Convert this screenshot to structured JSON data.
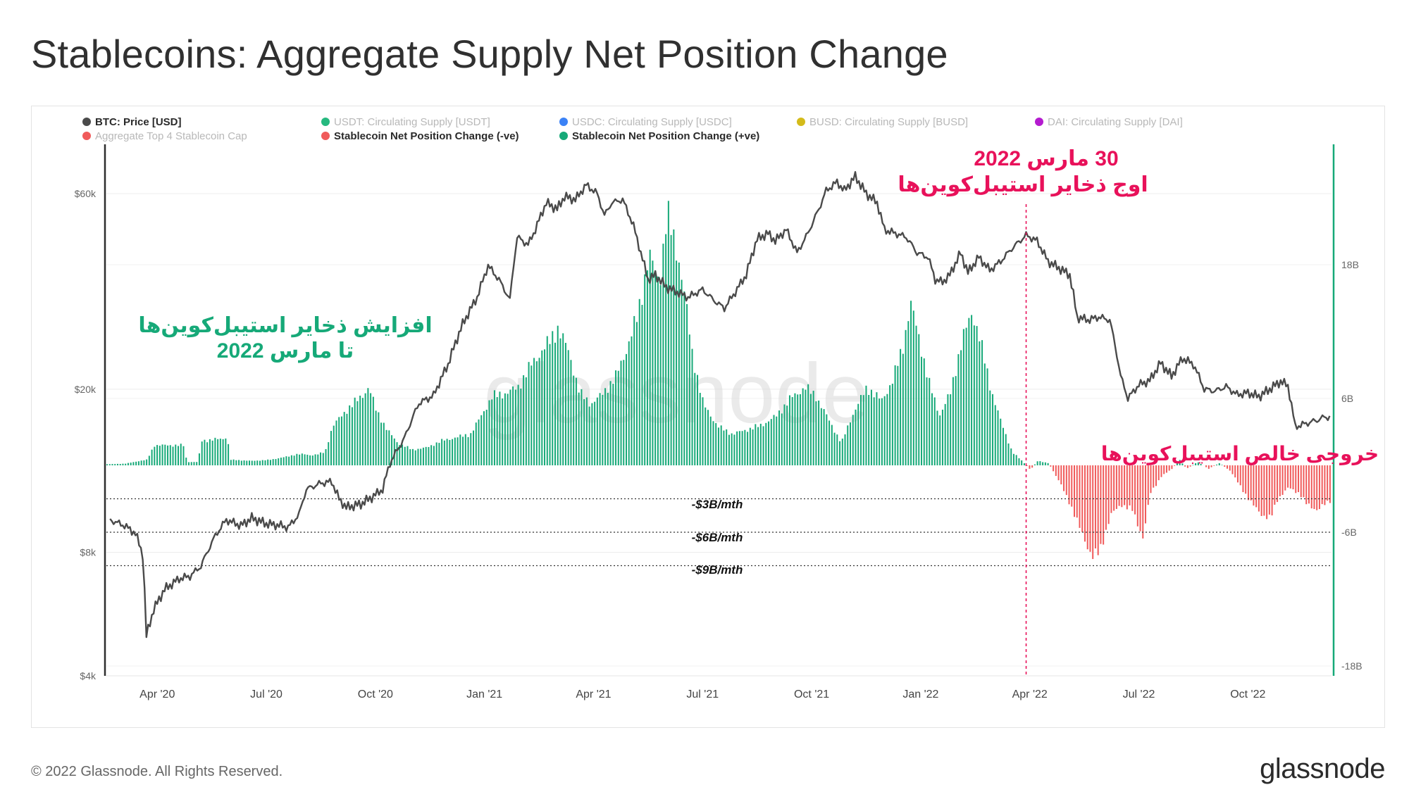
{
  "title": "Stablecoins: Aggregate Supply Net Position Change",
  "footer": {
    "copyright": "© 2022 Glassnode. All Rights Reserved.",
    "logo": "glassnode"
  },
  "watermark": "glassnode",
  "colors": {
    "price": "#4a4a4a",
    "positive": "#16a978",
    "negative": "#f05a5a",
    "annotation_pink": "#e8115a",
    "annotation_green": "#16a978"
  },
  "legend": [
    {
      "label": "BTC: Price [USD]",
      "color": "#4a4a4a",
      "active": true
    },
    {
      "label": "USDT: Circulating Supply [USDT]",
      "color": "#26b97f",
      "active": false
    },
    {
      "label": "USDC: Circulating Supply [USDC]",
      "color": "#3b82f6",
      "active": false
    },
    {
      "label": "BUSD: Circulating Supply [BUSD]",
      "color": "#d4bb1a",
      "active": false
    },
    {
      "label": "DAI: Circulating Supply [DAI]",
      "color": "#b41bcf",
      "active": false
    },
    {
      "label": "Aggregate Top 4 Stablecoin Cap",
      "color": "#f05a5a",
      "active": false
    },
    {
      "label": "Stablecoin Net Position Change (-ve)",
      "color": "#f05a5a",
      "active": true
    },
    {
      "label": "Stablecoin Net Position Change (+ve)",
      "color": "#16a978",
      "active": true
    }
  ],
  "annotations": {
    "peak_line1": "30 مارس 2022",
    "peak_line2": "اوج ذخایر استیبل‌کوین‌ها",
    "growth_line1": "افزایش ذخایر استیبل‌کوین‌ها",
    "growth_line2": "تا مارس 2022",
    "outflow": "خروجی خالص استیبل‌کوین‌ها",
    "ref_3b": "-$3B/mth",
    "ref_6b": "-$6B/mth",
    "ref_9b": "-$9B/mth"
  },
  "chart_data": {
    "type": "bar+line",
    "title": "Stablecoins: Aggregate Supply Net Position Change",
    "x_range": [
      "2020-02-20",
      "2022-12-10"
    ],
    "x_ticks": [
      {
        "label": "Apr '20",
        "t": 1.4
      },
      {
        "label": "Jul '20",
        "t": 4.4
      },
      {
        "label": "Oct '20",
        "t": 7.4
      },
      {
        "label": "Jan '21",
        "t": 10.4
      },
      {
        "label": "Apr '21",
        "t": 13.4
      },
      {
        "label": "Jul '21",
        "t": 16.4
      },
      {
        "label": "Oct '21",
        "t": 19.4
      },
      {
        "label": "Jan '22",
        "t": 22.4
      },
      {
        "label": "Apr '22",
        "t": 25.4
      },
      {
        "label": "Jul '22",
        "t": 28.4
      },
      {
        "label": "Oct '22",
        "t": 31.4
      }
    ],
    "x_domain_months": [
      0,
      33.7
    ],
    "left_axis": {
      "scale": "log",
      "range": [
        4000,
        70000
      ],
      "ticks": [
        {
          "label": "$4k",
          "v": 4000
        },
        {
          "label": "$8k",
          "v": 8000
        },
        {
          "label": "$20k",
          "v": 20000
        },
        {
          "label": "$60k",
          "v": 60000
        }
      ]
    },
    "right_axis": {
      "range": [
        -18,
        30
      ],
      "unit": "B USD / month",
      "ticks": [
        {
          "label": "18B",
          "v": 18
        },
        {
          "label": "6B",
          "v": 6
        },
        {
          "label": "-6B",
          "v": -6
        },
        {
          "label": "-18B",
          "v": -18
        }
      ]
    },
    "reference_lines": [
      -3,
      -6,
      -9
    ],
    "vertical_marker": {
      "date": "2022-03-30",
      "t": 25.3
    },
    "btc_price": {
      "name": "BTC: Price [USD]",
      "points": [
        [
          0.1,
          9600
        ],
        [
          0.5,
          9300
        ],
        [
          0.8,
          8900
        ],
        [
          1.0,
          7900
        ],
        [
          1.1,
          5000
        ],
        [
          1.3,
          5800
        ],
        [
          1.6,
          6500
        ],
        [
          2.0,
          6900
        ],
        [
          2.3,
          7000
        ],
        [
          2.6,
          7400
        ],
        [
          3.0,
          8800
        ],
        [
          3.3,
          9600
        ],
        [
          3.7,
          9300
        ],
        [
          4.0,
          9700
        ],
        [
          4.4,
          9400
        ],
        [
          4.8,
          9300
        ],
        [
          5.0,
          9200
        ],
        [
          5.3,
          9900
        ],
        [
          5.5,
          11400
        ],
        [
          5.9,
          11800
        ],
        [
          6.2,
          11900
        ],
        [
          6.4,
          10800
        ],
        [
          6.6,
          10300
        ],
        [
          7.0,
          10500
        ],
        [
          7.3,
          10900
        ],
        [
          7.6,
          11400
        ],
        [
          7.8,
          13200
        ],
        [
          8.2,
          15200
        ],
        [
          8.6,
          18500
        ],
        [
          9.0,
          19300
        ],
        [
          9.4,
          23000
        ],
        [
          9.8,
          28800
        ],
        [
          10.2,
          33500
        ],
        [
          10.5,
          40000
        ],
        [
          10.8,
          37000
        ],
        [
          11.1,
          33000
        ],
        [
          11.3,
          47000
        ],
        [
          11.6,
          45000
        ],
        [
          11.8,
          49000
        ],
        [
          12.1,
          57000
        ],
        [
          12.4,
          55000
        ],
        [
          12.6,
          59000
        ],
        [
          12.9,
          58000
        ],
        [
          13.2,
          63000
        ],
        [
          13.5,
          60000
        ],
        [
          13.7,
          53000
        ],
        [
          13.9,
          57000
        ],
        [
          14.2,
          58000
        ],
        [
          14.5,
          50000
        ],
        [
          14.7,
          43000
        ],
        [
          14.9,
          37000
        ],
        [
          15.1,
          38000
        ],
        [
          15.4,
          35500
        ],
        [
          15.7,
          34500
        ],
        [
          16.0,
          33500
        ],
        [
          16.4,
          35000
        ],
        [
          16.7,
          33000
        ],
        [
          17.0,
          31500
        ],
        [
          17.3,
          34500
        ],
        [
          17.6,
          38000
        ],
        [
          17.9,
          46500
        ],
        [
          18.2,
          48000
        ],
        [
          18.4,
          46000
        ],
        [
          18.7,
          49000
        ],
        [
          19.0,
          43000
        ],
        [
          19.3,
          48000
        ],
        [
          19.6,
          55000
        ],
        [
          19.8,
          61000
        ],
        [
          20.1,
          64000
        ],
        [
          20.3,
          61000
        ],
        [
          20.6,
          66000
        ],
        [
          20.9,
          60000
        ],
        [
          21.2,
          57000
        ],
        [
          21.4,
          49000
        ],
        [
          21.7,
          48000
        ],
        [
          22.0,
          47000
        ],
        [
          22.3,
          43000
        ],
        [
          22.6,
          42000
        ],
        [
          22.8,
          37000
        ],
        [
          23.0,
          36500
        ],
        [
          23.2,
          38000
        ],
        [
          23.5,
          43000
        ],
        [
          23.7,
          38500
        ],
        [
          24.0,
          42000
        ],
        [
          24.3,
          39000
        ],
        [
          24.6,
          41000
        ],
        [
          24.9,
          44000
        ],
        [
          25.3,
          47500
        ],
        [
          25.6,
          46000
        ],
        [
          25.9,
          41000
        ],
        [
          26.2,
          39500
        ],
        [
          26.5,
          38000
        ],
        [
          26.7,
          30000
        ],
        [
          27.0,
          29500
        ],
        [
          27.3,
          30000
        ],
        [
          27.6,
          29500
        ],
        [
          27.9,
          21500
        ],
        [
          28.1,
          19000
        ],
        [
          28.4,
          20500
        ],
        [
          28.7,
          21000
        ],
        [
          29.0,
          23200
        ],
        [
          29.3,
          21500
        ],
        [
          29.6,
          23800
        ],
        [
          29.9,
          23000
        ],
        [
          30.2,
          20000
        ],
        [
          30.5,
          19800
        ],
        [
          30.8,
          20300
        ],
        [
          31.1,
          19400
        ],
        [
          31.4,
          19600
        ],
        [
          31.7,
          19200
        ],
        [
          32.0,
          20000
        ],
        [
          32.3,
          20900
        ],
        [
          32.5,
          20400
        ],
        [
          32.7,
          16200
        ],
        [
          33.0,
          16500
        ],
        [
          33.3,
          16800
        ],
        [
          33.5,
          17100
        ],
        [
          33.7,
          17100
        ]
      ]
    },
    "net_position_change": {
      "name": "Stablecoin Net Position Change",
      "unit": "B USD / month",
      "points": [
        [
          0.0,
          0.1
        ],
        [
          0.5,
          0.15
        ],
        [
          0.9,
          0.4
        ],
        [
          1.1,
          0.5
        ],
        [
          1.3,
          1.8
        ],
        [
          1.6,
          1.8
        ],
        [
          2.1,
          1.8
        ],
        [
          2.2,
          0.3
        ],
        [
          2.5,
          0.3
        ],
        [
          2.6,
          2.2
        ],
        [
          3.2,
          2.4
        ],
        [
          3.3,
          2.6
        ],
        [
          3.4,
          0.5
        ],
        [
          4.0,
          0.4
        ],
        [
          4.5,
          0.5
        ],
        [
          4.8,
          0.7
        ],
        [
          5.0,
          0.8
        ],
        [
          5.1,
          0.9
        ],
        [
          5.2,
          1.0
        ],
        [
          5.4,
          1.0
        ],
        [
          5.6,
          0.9
        ],
        [
          5.8,
          1.0
        ],
        [
          6.0,
          1.2
        ],
        [
          6.2,
          3.5
        ],
        [
          6.6,
          5.0
        ],
        [
          7.0,
          6.2
        ],
        [
          7.2,
          7.0
        ],
        [
          7.4,
          5.0
        ],
        [
          7.7,
          3.2
        ],
        [
          8.0,
          2.0
        ],
        [
          8.4,
          1.4
        ],
        [
          8.8,
          1.6
        ],
        [
          9.2,
          2.2
        ],
        [
          9.6,
          2.5
        ],
        [
          10.0,
          2.8
        ],
        [
          10.3,
          4.5
        ],
        [
          10.6,
          6.2
        ],
        [
          11.0,
          6.5
        ],
        [
          11.3,
          7.0
        ],
        [
          11.7,
          9.2
        ],
        [
          12.1,
          10.8
        ],
        [
          12.4,
          12.3
        ],
        [
          12.7,
          10.2
        ],
        [
          13.0,
          6.5
        ],
        [
          13.3,
          5.5
        ],
        [
          13.6,
          6.3
        ],
        [
          14.0,
          8.0
        ],
        [
          14.3,
          10.5
        ],
        [
          14.6,
          13.5
        ],
        [
          14.9,
          18.8
        ],
        [
          15.2,
          16.5
        ],
        [
          15.4,
          22.5
        ],
        [
          15.7,
          19.0
        ],
        [
          15.9,
          15.0
        ],
        [
          16.1,
          10.0
        ],
        [
          16.4,
          5.5
        ],
        [
          16.8,
          3.5
        ],
        [
          17.2,
          2.8
        ],
        [
          17.6,
          3.2
        ],
        [
          18.0,
          3.6
        ],
        [
          18.4,
          4.4
        ],
        [
          18.8,
          6.0
        ],
        [
          19.2,
          7.0
        ],
        [
          19.5,
          6.2
        ],
        [
          19.9,
          3.8
        ],
        [
          20.2,
          2.0
        ],
        [
          20.5,
          4.5
        ],
        [
          20.9,
          7.0
        ],
        [
          21.3,
          5.8
        ],
        [
          21.6,
          7.5
        ],
        [
          21.9,
          10.8
        ],
        [
          22.1,
          14.5
        ],
        [
          22.3,
          12.0
        ],
        [
          22.6,
          7.5
        ],
        [
          22.9,
          4.5
        ],
        [
          23.2,
          6.5
        ],
        [
          23.5,
          11.0
        ],
        [
          23.8,
          13.8
        ],
        [
          24.0,
          11.5
        ],
        [
          24.3,
          7.0
        ],
        [
          24.6,
          3.8
        ],
        [
          24.9,
          1.2
        ],
        [
          25.2,
          0.3
        ],
        [
          25.4,
          -0.4
        ],
        [
          25.6,
          0.4
        ],
        [
          25.9,
          0.2
        ],
        [
          26.2,
          -1.5
        ],
        [
          26.5,
          -3.5
        ],
        [
          26.8,
          -6.0
        ],
        [
          27.1,
          -8.2
        ],
        [
          27.3,
          -7.8
        ],
        [
          27.6,
          -4.5
        ],
        [
          27.9,
          -3.5
        ],
        [
          28.2,
          -4.0
        ],
        [
          28.5,
          -6.5
        ],
        [
          28.7,
          -2.5
        ],
        [
          29.0,
          -1.0
        ],
        [
          29.3,
          -0.3
        ],
        [
          29.5,
          0.5
        ],
        [
          29.7,
          -0.3
        ],
        [
          30.0,
          0.3
        ],
        [
          30.3,
          -0.3
        ],
        [
          30.6,
          0.2
        ],
        [
          30.9,
          -0.5
        ],
        [
          31.2,
          -2.0
        ],
        [
          31.5,
          -3.5
        ],
        [
          31.8,
          -4.5
        ],
        [
          32.0,
          -4.8
        ],
        [
          32.2,
          -3.0
        ],
        [
          32.5,
          -2.0
        ],
        [
          32.8,
          -2.5
        ],
        [
          33.0,
          -3.5
        ],
        [
          33.3,
          -4.0
        ],
        [
          33.5,
          -3.5
        ],
        [
          33.7,
          -3.0
        ]
      ]
    }
  }
}
